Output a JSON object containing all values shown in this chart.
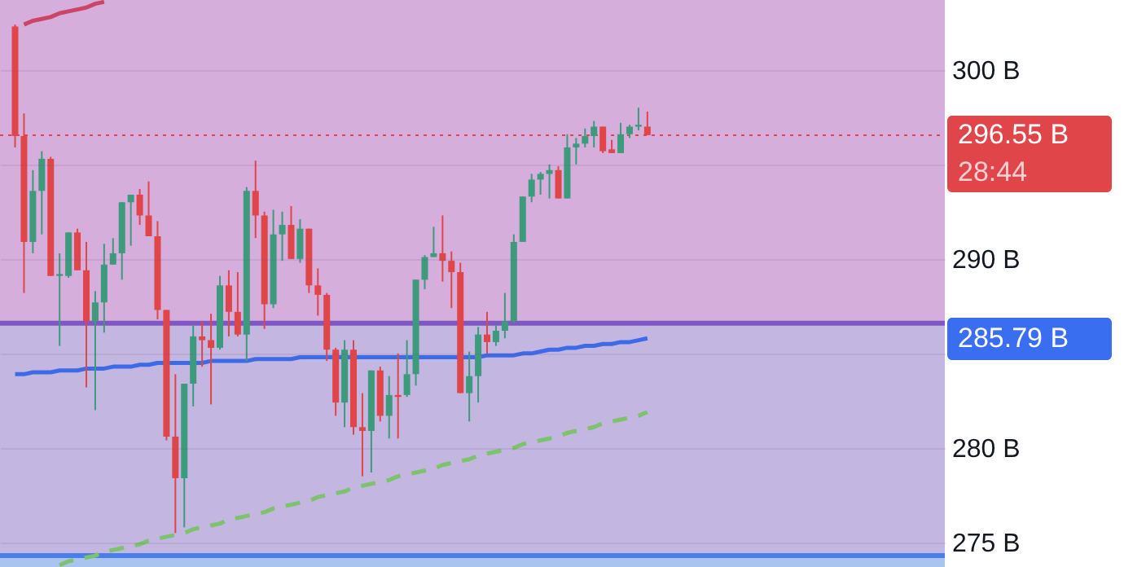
{
  "chart_data": {
    "type": "candlestick",
    "categories": [
      null,
      null,
      null,
      null,
      null,
      null,
      null,
      null,
      null,
      null,
      null,
      null,
      null,
      null,
      null,
      null,
      null,
      null,
      null,
      null,
      null,
      null,
      null,
      null,
      null,
      null,
      null,
      null,
      null,
      null,
      null,
      null,
      null,
      null,
      null,
      null,
      null,
      null,
      null,
      null,
      null,
      null,
      null,
      null,
      null,
      null,
      null,
      null,
      null,
      null,
      null,
      null,
      null,
      null,
      null,
      null,
      null,
      null,
      null,
      null,
      null,
      null,
      null,
      null,
      null,
      null,
      null,
      null,
      null,
      null,
      null,
      null
    ],
    "ohlc": [
      [
        302.3,
        302.4,
        295.9,
        296.5
      ],
      [
        296.5,
        297.7,
        288.2,
        290.9
      ],
      [
        290.9,
        294.7,
        290.3,
        293.6
      ],
      [
        293.6,
        295.7,
        291.3,
        295.3
      ],
      [
        295.3,
        295.4,
        289.1,
        289.1
      ],
      [
        289.1,
        290.3,
        285.4,
        289.2
      ],
      [
        289.1,
        291.4,
        289.0,
        291.4
      ],
      [
        291.4,
        291.6,
        289.4,
        289.4
      ],
      [
        289.4,
        290.9,
        283.2,
        286.7
      ],
      [
        286.7,
        288.3,
        282.0,
        287.7
      ],
      [
        287.7,
        290.8,
        286.1,
        289.7
      ],
      [
        289.7,
        291.1,
        289.7,
        290.3
      ],
      [
        290.3,
        293.0,
        288.9,
        293.0
      ],
      [
        293.0,
        293.4,
        290.7,
        293.4
      ],
      [
        293.4,
        293.7,
        291.8,
        292.3
      ],
      [
        292.3,
        294.1,
        291.2,
        291.2
      ],
      [
        291.2,
        292.0,
        286.8,
        287.3
      ],
      [
        287.3,
        287.3,
        280.4,
        280.6
      ],
      [
        280.6,
        283.9,
        275.5,
        278.4
      ],
      [
        278.4,
        283.4,
        275.8,
        283.4
      ],
      [
        283.4,
        286.5,
        282.2,
        285.9
      ],
      [
        285.9,
        286.7,
        284.3,
        285.7
      ],
      [
        285.7,
        287.1,
        282.3,
        285.3
      ],
      [
        285.3,
        289.1,
        285.2,
        288.6
      ],
      [
        288.6,
        289.4,
        285.9,
        287.2
      ],
      [
        287.2,
        289.3,
        285.9,
        286.0
      ],
      [
        286.0,
        293.8,
        284.6,
        293.6
      ],
      [
        293.6,
        295.2,
        291.1,
        292.3
      ],
      [
        292.3,
        292.5,
        286.3,
        287.6
      ],
      [
        287.6,
        292.6,
        287.4,
        291.3
      ],
      [
        291.3,
        292.5,
        289.9,
        291.8
      ],
      [
        291.8,
        292.8,
        290.0,
        290.0
      ],
      [
        290.0,
        292.1,
        289.8,
        291.6
      ],
      [
        291.6,
        291.6,
        288.2,
        288.6
      ],
      [
        288.6,
        289.5,
        287.0,
        288.1
      ],
      [
        288.1,
        288.2,
        284.6,
        285.2
      ],
      [
        285.2,
        285.3,
        281.7,
        282.4
      ],
      [
        282.4,
        285.7,
        281.1,
        285.2
      ],
      [
        285.2,
        285.7,
        280.7,
        281.1
      ],
      [
        281.1,
        282.9,
        278.5,
        280.9
      ],
      [
        280.9,
        284.1,
        278.7,
        284.1
      ],
      [
        284.1,
        284.3,
        281.4,
        281.7
      ],
      [
        281.7,
        283.8,
        280.5,
        282.8
      ],
      [
        282.8,
        285.0,
        280.5,
        282.7
      ],
      [
        282.8,
        285.7,
        282.7,
        283.9
      ],
      [
        283.9,
        288.9,
        283.3,
        288.9
      ],
      [
        288.9,
        290.2,
        288.4,
        290.1
      ],
      [
        290.1,
        291.7,
        290.1,
        290.3
      ],
      [
        290.3,
        292.3,
        288.8,
        289.9
      ],
      [
        289.9,
        290.4,
        287.4,
        289.3
      ],
      [
        289.3,
        289.8,
        282.9,
        282.9
      ],
      [
        282.9,
        285.1,
        281.4,
        283.8
      ],
      [
        283.8,
        286.4,
        282.4,
        286.0
      ],
      [
        286.0,
        287.2,
        285.0,
        285.6
      ],
      [
        285.6,
        286.5,
        285.4,
        286.2
      ],
      [
        286.2,
        288.2,
        285.8,
        286.7
      ],
      [
        286.7,
        291.3,
        286.6,
        290.9
      ],
      [
        290.9,
        293.3,
        290.9,
        293.3
      ],
      [
        293.3,
        294.5,
        293.0,
        294.2
      ],
      [
        294.2,
        294.6,
        293.4,
        294.5
      ],
      [
        294.5,
        295.0,
        293.2,
        294.7
      ],
      [
        294.7,
        294.9,
        293.2,
        293.2
      ],
      [
        293.2,
        296.6,
        293.2,
        295.9
      ],
      [
        295.9,
        296.4,
        295.0,
        296.1
      ],
      [
        296.1,
        296.9,
        295.9,
        296.5
      ],
      [
        296.5,
        297.3,
        295.9,
        297.0
      ],
      [
        297.0,
        297.0,
        295.6,
        295.7
      ],
      [
        295.8,
        296.3,
        295.6,
        295.6
      ],
      [
        295.6,
        297.2,
        295.6,
        296.6
      ],
      [
        296.6,
        297.1,
        296.4,
        297.0
      ],
      [
        297.0,
        298.0,
        296.8,
        297.1
      ],
      [
        297.0,
        297.8,
        296.55,
        296.55
      ]
    ],
    "colors": [
      "#e0454a",
      "#e0454a",
      "#3d9a7c",
      "#3d9a7c",
      "#e0454a",
      "#3d9a7c",
      "#3d9a7c",
      "#e0454a",
      "#e0454a",
      "#3d9a7c",
      "#3d9a7c",
      "#3d9a7c",
      "#3d9a7c",
      "#3d9a7c",
      "#e0454a",
      "#e0454a",
      "#e0454a",
      "#e0454a",
      "#e0454a",
      "#3d9a7c",
      "#3d9a7c",
      "#e0454a",
      "#e0454a",
      "#3d9a7c",
      "#e0454a",
      "#e0454a",
      "#3d9a7c",
      "#e0454a",
      "#e0454a",
      "#3d9a7c",
      "#3d9a7c",
      "#e0454a",
      "#3d9a7c",
      "#e0454a",
      "#e0454a",
      "#e0454a",
      "#e0454a",
      "#3d9a7c",
      "#e0454a",
      "#e0454a",
      "#3d9a7c",
      "#e0454a",
      "#3d9a7c",
      "#e0454a",
      "#3d9a7c",
      "#3d9a7c",
      "#3d9a7c",
      "#3d9a7c",
      "#e0454a",
      "#e0454a",
      "#e0454a",
      "#3d9a7c",
      "#3d9a7c",
      "#e0454a",
      "#3d9a7c",
      "#3d9a7c",
      "#3d9a7c",
      "#3d9a7c",
      "#3d9a7c",
      "#3d9a7c",
      "#3d9a7c",
      "#e0454a",
      "#3d9a7c",
      "#3d9a7c",
      "#3d9a7c",
      "#3d9a7c",
      "#e0454a",
      "#e0454a",
      "#3d9a7c",
      "#3d9a7c",
      "#3d9a7c",
      "#e0454a"
    ],
    "series": [
      {
        "type": "line",
        "color": "#3d6be8",
        "values": [
          283.9,
          283.9,
          284.0,
          284.0,
          284.0,
          284.1,
          284.1,
          284.1,
          284.2,
          284.2,
          284.2,
          284.3,
          284.3,
          284.3,
          284.4,
          284.4,
          284.5,
          284.5,
          284.5,
          284.5,
          284.5,
          284.5,
          284.6,
          284.6,
          284.6,
          284.6,
          284.6,
          284.7,
          284.7,
          284.7,
          284.7,
          284.7,
          284.8,
          284.8,
          284.8,
          284.8,
          284.8,
          284.8,
          284.8,
          284.8,
          284.8,
          284.8,
          284.8,
          284.8,
          284.8,
          284.8,
          284.8,
          284.8,
          284.8,
          284.8,
          284.8,
          284.8,
          284.8,
          284.9,
          284.9,
          284.9,
          284.9,
          285.0,
          285.0,
          285.1,
          285.2,
          285.2,
          285.3,
          285.3,
          285.4,
          285.4,
          285.5,
          285.5,
          285.6,
          285.6,
          285.7,
          285.8
        ]
      },
      {
        "type": "line",
        "color": "#7cc36b",
        "line_style": "dashed",
        "values": [
          null,
          null,
          null,
          null,
          null,
          273.8,
          274.0,
          274.1,
          274.2,
          274.3,
          274.5,
          274.6,
          274.7,
          274.8,
          274.9,
          275.1,
          275.2,
          275.3,
          275.4,
          275.5,
          275.7,
          275.8,
          275.9,
          276.0,
          276.2,
          276.3,
          276.4,
          276.5,
          276.6,
          276.8,
          276.9,
          277.0,
          277.1,
          277.2,
          277.4,
          277.5,
          277.6,
          277.7,
          277.9,
          278.0,
          278.1,
          278.2,
          278.3,
          278.5,
          278.6,
          278.7,
          278.8,
          278.9,
          279.1,
          279.2,
          279.3,
          279.4,
          279.6,
          279.7,
          279.8,
          279.9,
          280.0,
          280.2,
          280.3,
          280.4,
          280.5,
          280.6,
          280.8,
          280.9,
          281.0,
          281.1,
          281.3,
          281.4,
          281.5,
          281.6,
          281.7,
          281.9
        ]
      },
      {
        "type": "line",
        "color": "#cc4466",
        "values": [
          null,
          302.4,
          302.6,
          302.7,
          302.8,
          303.0,
          303.1,
          303.2,
          303.3,
          303.5,
          303.6,
          null,
          null,
          null,
          null,
          null,
          null,
          null,
          null,
          null,
          null,
          null,
          null,
          null,
          null,
          null,
          null,
          null,
          null,
          null,
          null,
          null,
          null,
          null,
          null,
          null,
          null,
          null,
          null,
          null,
          null,
          null,
          null,
          null,
          null,
          null,
          null,
          null,
          null,
          null,
          null,
          null,
          null,
          null,
          null,
          null,
          null,
          null,
          null,
          null,
          null,
          null,
          null,
          null,
          null,
          null,
          null,
          null,
          null,
          null,
          null,
          null
        ]
      }
    ],
    "ylim": [
      273.7,
      303.7
    ],
    "yticks": [
      {
        "value": 275,
        "label": "275 B"
      },
      {
        "value": 280,
        "label": "280 B"
      },
      {
        "value": 285,
        "label": null
      },
      {
        "value": 290,
        "label": "290 B"
      },
      {
        "value": 295,
        "label": null
      },
      {
        "value": 300,
        "label": "300 B"
      }
    ],
    "tick_labels": "y",
    "grid": "y",
    "bands": [
      {
        "axis": "y",
        "from": 286.6,
        "to": 303.7,
        "color": "#d5aedc"
      },
      {
        "axis": "y",
        "from": 274.3,
        "to": 286.6,
        "color": "#c3b6e0"
      },
      {
        "axis": "y",
        "from": 273.7,
        "to": 274.3,
        "color": "#aac4f0"
      }
    ],
    "ref_lines": [
      {
        "axis": "y",
        "value": 296.55,
        "label": "296.55 B",
        "color": "#e0454a",
        "line_style": "dotted"
      },
      {
        "axis": "y",
        "value": 286.6,
        "color": "#7e57c2"
      },
      {
        "axis": "y",
        "value": 274.3,
        "color": "#4a7ef0"
      }
    ],
    "annotations": [
      "28:44",
      "285.79 B"
    ]
  }
}
